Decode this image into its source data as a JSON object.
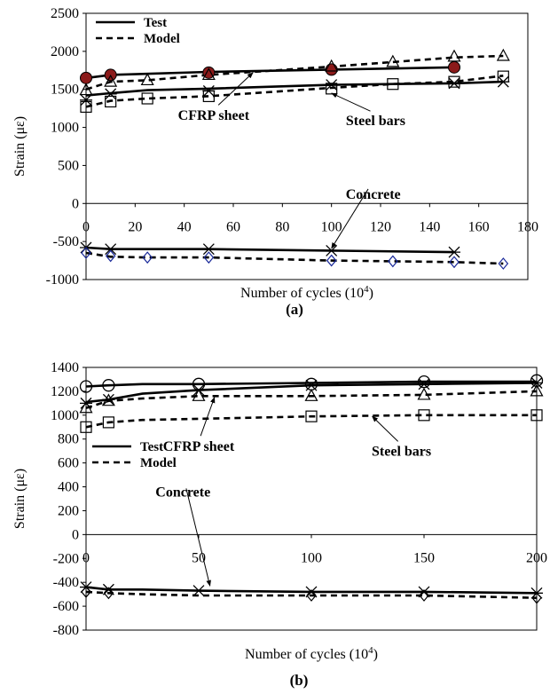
{
  "chart_data": [
    {
      "type": "line",
      "panel_label": "(a)",
      "xlabel": "Number of cycles (10",
      "xlabel_sup": "4",
      "xlabel_end": ")",
      "ylabel": "Strain (με)",
      "xlim": [
        0,
        180
      ],
      "ylim": [
        -1000,
        2500
      ],
      "xticks": [
        0,
        20,
        40,
        60,
        80,
        100,
        120,
        140,
        160,
        180
      ],
      "yticks": [
        -1000,
        -500,
        0,
        500,
        1000,
        1500,
        2000,
        2500
      ],
      "legend": {
        "position": "top-left",
        "entries": [
          {
            "label": "Test",
            "style": "solid"
          },
          {
            "label": "Model",
            "style": "dashed"
          }
        ]
      },
      "annotations": [
        {
          "text": "CFRP sheet",
          "x": 52,
          "y": 1100,
          "ax": 68,
          "ay": 1720
        },
        {
          "text": "Steel bars",
          "x": 118,
          "y": 1030,
          "ax": 100,
          "ay": 1450
        },
        {
          "text": "Concrete",
          "x": 117,
          "y": 60,
          "ax": 100,
          "ay": -590
        }
      ],
      "series": [
        {
          "style": "solid",
          "x": [
            0,
            10,
            20,
            50,
            100,
            150
          ],
          "y": [
            1650,
            1690,
            1700,
            1730,
            1760,
            1790
          ]
        },
        {
          "style": "solid",
          "x": [
            0,
            10,
            25,
            50,
            100,
            125,
            150,
            170
          ],
          "y": [
            1420,
            1450,
            1490,
            1510,
            1560,
            1570,
            1580,
            1600
          ]
        },
        {
          "style": "solid",
          "x": [
            0,
            10,
            50,
            100,
            150
          ],
          "y": [
            -580,
            -600,
            -600,
            -620,
            -640
          ]
        },
        {
          "style": "dashed",
          "x": [
            0,
            10,
            25,
            50,
            100,
            125,
            150,
            170
          ],
          "y": [
            1500,
            1600,
            1620,
            1690,
            1800,
            1860,
            1920,
            1940
          ]
        },
        {
          "style": "dashed",
          "x": [
            0,
            10,
            25,
            50,
            100,
            125,
            150,
            170
          ],
          "y": [
            1270,
            1350,
            1380,
            1410,
            1520,
            1570,
            1600,
            1680
          ]
        },
        {
          "style": "dashed",
          "x": [
            0,
            10,
            25,
            50,
            100,
            125,
            150,
            170
          ],
          "y": [
            -650,
            -700,
            -710,
            -710,
            -750,
            -760,
            -770,
            -790
          ]
        }
      ],
      "markers": [
        {
          "shape": "filled-circle",
          "color": "#8b1a1a",
          "x": [
            0,
            10,
            50,
            100,
            150
          ],
          "y": [
            1650,
            1690,
            1720,
            1760,
            1790
          ]
        },
        {
          "shape": "triangle",
          "x": [
            0,
            10,
            25,
            50,
            100,
            125,
            150,
            170
          ],
          "y": [
            1490,
            1600,
            1620,
            1690,
            1800,
            1860,
            1930,
            1940
          ]
        },
        {
          "shape": "square",
          "x": [
            0,
            10,
            25,
            50,
            100,
            125,
            150,
            170
          ],
          "y": [
            1270,
            1340,
            1380,
            1410,
            1510,
            1570,
            1600,
            1670
          ]
        },
        {
          "shape": "cross",
          "x": [
            0,
            10,
            50,
            100,
            150,
            170
          ],
          "y": [
            1360,
            1440,
            1480,
            1560,
            1580,
            1600
          ]
        },
        {
          "shape": "cross",
          "x": [
            0,
            10,
            50,
            100,
            150
          ],
          "y": [
            -580,
            -600,
            -600,
            -620,
            -640
          ]
        },
        {
          "shape": "diamond",
          "color": "#1a2a9a",
          "x": [
            0,
            10,
            25,
            50,
            100,
            125,
            150,
            170
          ],
          "y": [
            -650,
            -690,
            -710,
            -710,
            -750,
            -760,
            -770,
            -790
          ]
        }
      ]
    },
    {
      "type": "line",
      "panel_label": "(b)",
      "xlabel": "Number of cycles (10",
      "xlabel_sup": "4",
      "xlabel_end": ")",
      "ylabel": "Strain (με)",
      "xlim": [
        0,
        200
      ],
      "ylim": [
        -800,
        1400
      ],
      "xticks": [
        0,
        50,
        100,
        150,
        200
      ],
      "xtick_labels": [
        "0",
        "50",
        "100",
        "150",
        "200"
      ],
      "yticks": [
        -800,
        -600,
        -400,
        -200,
        0,
        200,
        400,
        600,
        800,
        1000,
        1200,
        1400
      ],
      "legend": {
        "position": "mid-left",
        "entries": [
          {
            "label": "Test",
            "style": "solid"
          },
          {
            "label": "Model",
            "style": "dashed"
          }
        ]
      },
      "annotations": [
        {
          "text": "CFRP sheet",
          "x": 50,
          "y": 700,
          "ax": 57,
          "ay": 1150
        },
        {
          "text": "Steel bars",
          "x": 140,
          "y": 660,
          "ax": 127,
          "ay": 990
        },
        {
          "text": "Concrete",
          "x": 43,
          "y": 320,
          "ax": 55,
          "ay": -430
        }
      ],
      "series": [
        {
          "style": "solid",
          "x": [
            0,
            10,
            25,
            50,
            100,
            150,
            200
          ],
          "y": [
            1240,
            1250,
            1260,
            1260,
            1270,
            1280,
            1280
          ]
        },
        {
          "style": "solid",
          "x": [
            0,
            10,
            25,
            50,
            100,
            150,
            200
          ],
          "y": [
            1110,
            1130,
            1180,
            1210,
            1250,
            1260,
            1270
          ]
        },
        {
          "style": "solid",
          "x": [
            0,
            10,
            25,
            50,
            100,
            150,
            200
          ],
          "y": [
            -440,
            -460,
            -460,
            -470,
            -480,
            -480,
            -490
          ]
        },
        {
          "style": "dashed",
          "x": [
            0,
            10,
            25,
            50,
            100,
            150,
            200
          ],
          "y": [
            1060,
            1120,
            1140,
            1160,
            1160,
            1170,
            1200
          ]
        },
        {
          "style": "dashed",
          "x": [
            0,
            10,
            25,
            50,
            100,
            150,
            200
          ],
          "y": [
            900,
            940,
            960,
            970,
            990,
            1000,
            1000
          ]
        },
        {
          "style": "dashed",
          "x": [
            0,
            10,
            25,
            50,
            100,
            150,
            200
          ],
          "y": [
            -480,
            -490,
            -500,
            -510,
            -510,
            -510,
            -530
          ]
        }
      ],
      "markers": [
        {
          "shape": "circle",
          "x": [
            0,
            10,
            50,
            100,
            150,
            200
          ],
          "y": [
            1240,
            1250,
            1260,
            1260,
            1280,
            1290
          ]
        },
        {
          "shape": "triangle",
          "x": [
            0,
            10,
            50,
            100,
            150,
            200
          ],
          "y": [
            1060,
            1120,
            1160,
            1160,
            1170,
            1200
          ]
        },
        {
          "shape": "square",
          "x": [
            0,
            10,
            100,
            150,
            200
          ],
          "y": [
            900,
            940,
            990,
            1000,
            1000
          ]
        },
        {
          "shape": "cross",
          "x": [
            0,
            10,
            50,
            100,
            150,
            200
          ],
          "y": [
            1100,
            1130,
            1210,
            1250,
            1260,
            1270
          ]
        },
        {
          "shape": "cross",
          "x": [
            0,
            10,
            50,
            100,
            150,
            200
          ],
          "y": [
            -440,
            -460,
            -470,
            -480,
            -480,
            -490
          ]
        },
        {
          "shape": "diamond",
          "x": [
            0,
            10,
            100,
            150,
            200
          ],
          "y": [
            -480,
            -490,
            -510,
            -510,
            -530
          ]
        }
      ]
    }
  ]
}
